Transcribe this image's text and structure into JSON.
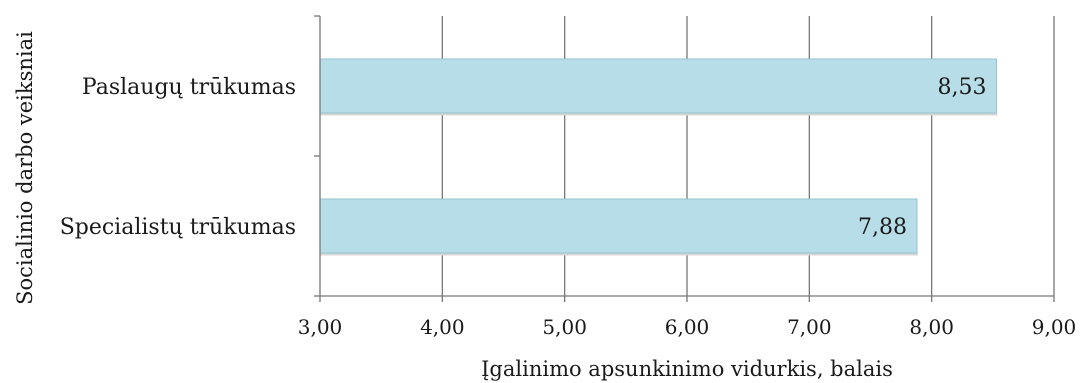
{
  "chart_data": {
    "type": "bar",
    "orientation": "horizontal",
    "categories": [
      "Paslaugų trūkumas",
      "Specialistų trūkumas"
    ],
    "values": [
      8.53,
      7.88
    ],
    "value_labels": [
      "8,53",
      "7,88"
    ],
    "xlim": [
      3,
      9
    ],
    "x_ticks": [
      3,
      4,
      5,
      6,
      7,
      8,
      9
    ],
    "x_tick_labels": [
      "3,00",
      "4,00",
      "5,00",
      "6,00",
      "7,00",
      "8,00",
      "9,00"
    ],
    "xlabel": "Įgalinimo apsunkinimo vidurkis, balais",
    "ylabel": "Socialinio darbo  veiksniai",
    "grid": "vertical",
    "legend": "none",
    "bar_color": "#b7dde8",
    "bar_edge_color": "#95c3d3",
    "grid_color": "#777777"
  }
}
